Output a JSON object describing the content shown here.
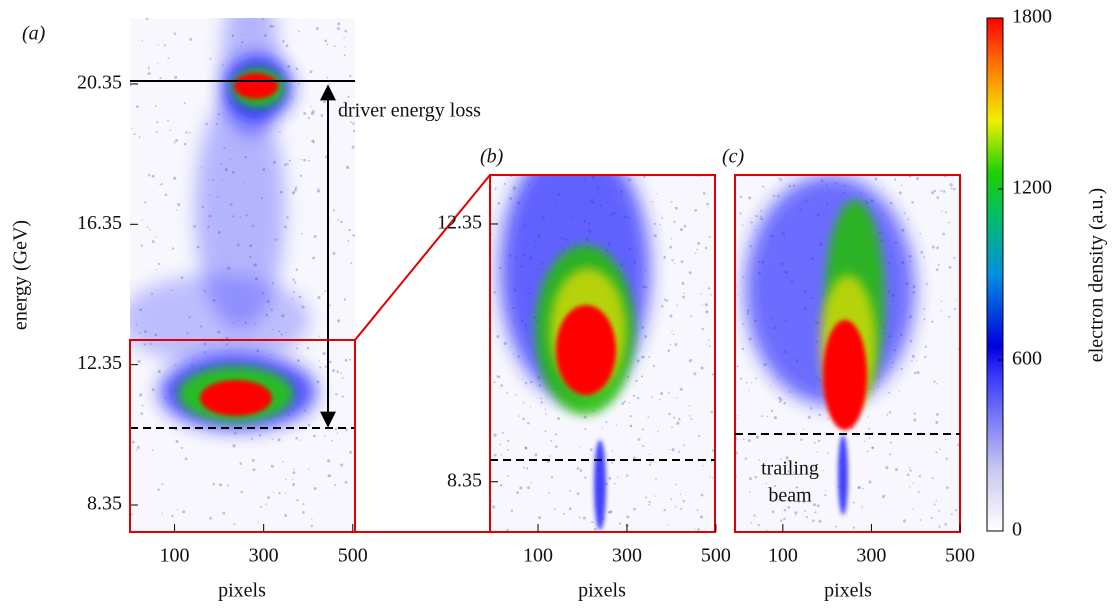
{
  "chart_data": [
    {
      "type": "image",
      "panel_label": "(a)",
      "x_label": "pixels",
      "y_label": "energy (GeV)",
      "xlim": [
        0,
        505
      ],
      "xticks": [
        100,
        300,
        500
      ],
      "ylim": [
        7.58,
        22.23
      ],
      "yticks": [
        8.35,
        12.35,
        16.35,
        20.35
      ],
      "annotation": [
        "driver energy loss"
      ]
    },
    {
      "type": "image",
      "panel_label": "(b)",
      "x_label": "pixels",
      "xlim": [
        -8,
        498
      ],
      "xticks": [
        100,
        300,
        500
      ],
      "ylim": [
        7.57,
        13.11
      ],
      "yticks": [
        8.35,
        12.35
      ]
    },
    {
      "type": "image",
      "panel_label": "(c)",
      "x_label": "pixels",
      "xlim": [
        -8,
        500
      ],
      "xticks": [
        100,
        300,
        500
      ],
      "ylim": [
        7.57,
        13.11
      ],
      "annotation": [
        "trailing",
        "beam"
      ]
    },
    {
      "type": "colorbar",
      "label": "electron density (a.u.)",
      "ylim": [
        0,
        1800
      ],
      "yticks": [
        0,
        600,
        1200,
        1800
      ]
    }
  ]
}
